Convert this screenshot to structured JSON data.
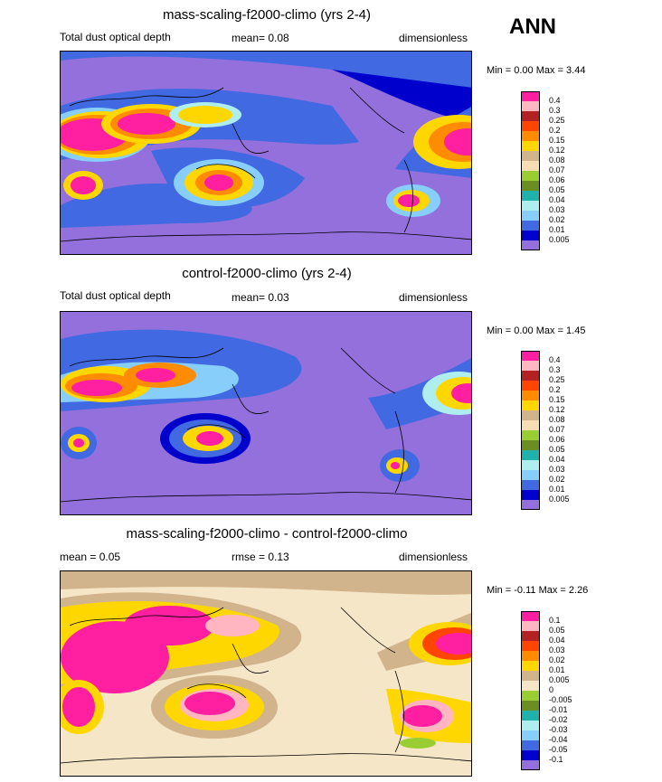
{
  "season": "ANN",
  "chart_data": [
    {
      "type": "heatmap",
      "title": "mass-scaling-f2000-climo (yrs 2-4)",
      "left_label": "Total dust optical depth",
      "stat_text": "mean=   0.08",
      "units": "dimensionless",
      "minmax_text": "Min =   0.00 Max =   3.44",
      "min": 0.0,
      "max": 3.44,
      "colorbar_levels": [
        "0.4",
        "0.3",
        "0.25",
        "0.2",
        "0.15",
        "0.12",
        "0.08",
        "0.07",
        "0.06",
        "0.05",
        "0.04",
        "0.03",
        "0.02",
        "0.01",
        "0.005"
      ],
      "colorbar_colors": [
        "#ff1fa0",
        "#ffb6c1",
        "#b22222",
        "#ff4500",
        "#ff8c00",
        "#ffd700",
        "#d2b48c",
        "#f5deb3",
        "#9acd32",
        "#6b8e23",
        "#20b2aa",
        "#afeeee",
        "#87cefa",
        "#4169e1",
        "#0000cd",
        "#9370db"
      ]
    },
    {
      "type": "heatmap",
      "title": "control-f2000-climo (yrs 2-4)",
      "left_label": "Total dust optical depth",
      "stat_text": "mean=   0.03",
      "units": "dimensionless",
      "minmax_text": "Min =   0.00 Max =   1.45",
      "min": 0.0,
      "max": 1.45,
      "colorbar_levels": [
        "0.4",
        "0.3",
        "0.25",
        "0.2",
        "0.15",
        "0.12",
        "0.08",
        "0.07",
        "0.06",
        "0.05",
        "0.04",
        "0.03",
        "0.02",
        "0.01",
        "0.005"
      ],
      "colorbar_colors": [
        "#ff1fa0",
        "#ffb6c1",
        "#b22222",
        "#ff4500",
        "#ff8c00",
        "#ffd700",
        "#d2b48c",
        "#f5deb3",
        "#9acd32",
        "#6b8e23",
        "#20b2aa",
        "#afeeee",
        "#87cefa",
        "#4169e1",
        "#0000cd",
        "#9370db"
      ]
    },
    {
      "type": "heatmap",
      "title": "mass-scaling-f2000-climo - control-f2000-climo",
      "left_label": "mean =   0.05",
      "stat_text": "rmse =   0.13",
      "units": "dimensionless",
      "minmax_text": "Min =  -0.11 Max =   2.26",
      "min": -0.11,
      "max": 2.26,
      "colorbar_levels": [
        "0.1",
        "0.05",
        "0.04",
        "0.03",
        "0.02",
        "0.01",
        "0.005",
        "0",
        "-0.005",
        "-0.01",
        "-0.02",
        "-0.03",
        "-0.04",
        "-0.05",
        "-0.1"
      ],
      "colorbar_colors": [
        "#ff1fa0",
        "#ffb6c1",
        "#b22222",
        "#ff4500",
        "#ff8c00",
        "#ffd700",
        "#d2b48c",
        "#f5e6c8",
        "#9acd32",
        "#6b8e23",
        "#20b2aa",
        "#afeeee",
        "#87cefa",
        "#4169e1",
        "#0000cd",
        "#9370db"
      ]
    }
  ]
}
